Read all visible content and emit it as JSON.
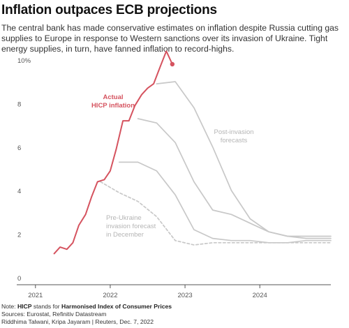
{
  "header": {
    "title": "Inflation outpaces ECB projections",
    "subtitle": "The central bank has made conservative estimates on inflation despite Russia cutting gas supplies to Europe in response to Western sanctions over its invasion of Ukraine. Tight energy supplies, in turn, have fanned inflation to record-highs."
  },
  "footer": {
    "note_prefix": "Note: ",
    "note_term": "HICP",
    "note_middle": " stands for ",
    "note_expansion": "Harmonised Index of Consumer Prices",
    "sources": "Sources: Eurostat, Refinitiv Datastream",
    "credits": "Riddhima Talwani, Kripa Jayaram | Reuters, Dec. 7, 2022"
  },
  "colors": {
    "actual": "#d5535f",
    "forecast": "#c8c8c8",
    "pre_ukraine": "#c8c8c8",
    "axis": "#555555",
    "annotation_grey": "#b5b5b5"
  },
  "chart_data": {
    "type": "line",
    "x_ticks": [
      "2021",
      "2022",
      "2023",
      "2024"
    ],
    "y_ticks": [
      "0",
      "2",
      "4",
      "6",
      "8",
      "10%"
    ],
    "ylim": [
      0,
      10
    ],
    "xlim": [
      2020.75,
      2024.95
    ],
    "annotations": {
      "actual": [
        "Actual",
        "HICP inflation"
      ],
      "post_invasion": [
        "Post-invasion",
        "forecasts"
      ],
      "pre_ukraine": [
        "Pre-Ukraine",
        "invasion forecast",
        "in December"
      ]
    },
    "series": [
      {
        "id": "actual",
        "style": "solid-red",
        "points": [
          [
            2021.25,
            1.3
          ],
          [
            2021.33,
            1.6
          ],
          [
            2021.42,
            1.5
          ],
          [
            2021.5,
            1.8
          ],
          [
            2021.58,
            2.6
          ],
          [
            2021.67,
            3.1
          ],
          [
            2021.75,
            3.9
          ],
          [
            2021.83,
            4.6
          ],
          [
            2021.92,
            4.7
          ],
          [
            2022.0,
            5.1
          ],
          [
            2022.08,
            6.1
          ],
          [
            2022.17,
            7.4
          ],
          [
            2022.25,
            7.4
          ],
          [
            2022.33,
            8.1
          ],
          [
            2022.42,
            8.6
          ],
          [
            2022.5,
            8.9
          ],
          [
            2022.58,
            9.1
          ],
          [
            2022.67,
            9.9
          ],
          [
            2022.75,
            10.6
          ],
          [
            2022.83,
            10.0
          ]
        ],
        "last_marker": true
      },
      {
        "id": "forecast-sep-2022",
        "style": "solid-grey",
        "points": [
          [
            2022.62,
            9.1
          ],
          [
            2022.87,
            9.2
          ],
          [
            2023.12,
            8.0
          ],
          [
            2023.37,
            6.2
          ],
          [
            2023.62,
            4.2
          ],
          [
            2023.87,
            2.9
          ],
          [
            2024.12,
            2.3
          ],
          [
            2024.37,
            2.1
          ],
          [
            2024.62,
            2.1
          ],
          [
            2024.95,
            2.1
          ]
        ]
      },
      {
        "id": "forecast-jun-2022",
        "style": "solid-grey",
        "points": [
          [
            2022.37,
            7.5
          ],
          [
            2022.62,
            7.3
          ],
          [
            2022.87,
            6.4
          ],
          [
            2023.12,
            4.6
          ],
          [
            2023.37,
            3.3
          ],
          [
            2023.62,
            3.1
          ],
          [
            2023.87,
            2.7
          ],
          [
            2024.12,
            2.3
          ],
          [
            2024.37,
            2.1
          ],
          [
            2024.62,
            2.0
          ],
          [
            2024.95,
            2.0
          ]
        ]
      },
      {
        "id": "forecast-mar-2022",
        "style": "solid-grey",
        "points": [
          [
            2022.12,
            5.5
          ],
          [
            2022.37,
            5.5
          ],
          [
            2022.62,
            5.1
          ],
          [
            2022.87,
            4.0
          ],
          [
            2023.12,
            2.4
          ],
          [
            2023.37,
            2.0
          ],
          [
            2023.62,
            1.9
          ],
          [
            2023.87,
            1.9
          ],
          [
            2024.12,
            1.8
          ],
          [
            2024.37,
            1.8
          ],
          [
            2024.62,
            1.9
          ],
          [
            2024.95,
            1.9
          ]
        ]
      },
      {
        "id": "pre-ukraine-dec-2021",
        "style": "dashed-grey",
        "points": [
          [
            2021.87,
            4.6
          ],
          [
            2022.12,
            4.1
          ],
          [
            2022.37,
            3.7
          ],
          [
            2022.62,
            3.0
          ],
          [
            2022.87,
            1.9
          ],
          [
            2023.12,
            1.7
          ],
          [
            2023.37,
            1.8
          ],
          [
            2023.62,
            1.8
          ],
          [
            2023.87,
            1.8
          ],
          [
            2024.12,
            1.8
          ],
          [
            2024.37,
            1.8
          ],
          [
            2024.62,
            1.8
          ],
          [
            2024.95,
            1.8
          ]
        ]
      }
    ]
  }
}
